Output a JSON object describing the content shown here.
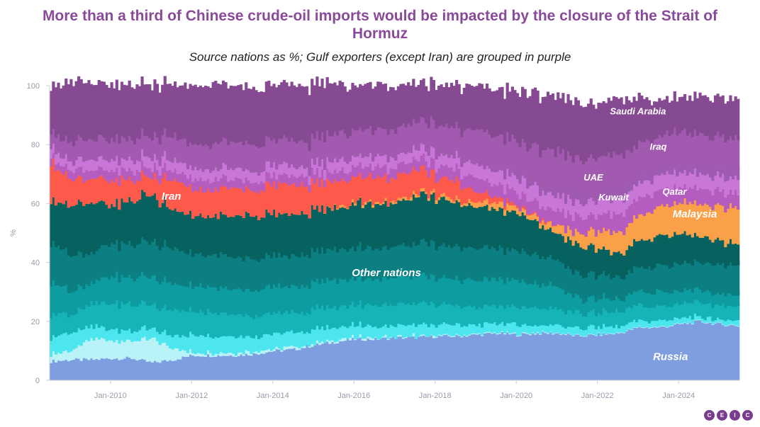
{
  "title": "More than a third of Chinese crude-oil imports would be impacted by the closure of the Strait of Hormuz",
  "subtitle": "Source nations as %; Gulf exporters (except Iran) are grouped in purple",
  "logo": [
    "C",
    "E",
    "I",
    "C"
  ],
  "chart_data": {
    "type": "area",
    "stacked": true,
    "ylabel": "%",
    "ylim": [
      0,
      100
    ],
    "yticks": [
      0,
      20,
      40,
      60,
      80,
      100
    ],
    "xlim": [
      2008.5,
      2025.5
    ],
    "xticks": [
      {
        "value": 2010,
        "label": "Jan-2010"
      },
      {
        "value": 2012,
        "label": "Jan-2012"
      },
      {
        "value": 2014,
        "label": "Jan-2014"
      },
      {
        "value": 2016,
        "label": "Jan-2016"
      },
      {
        "value": 2018,
        "label": "Jan-2018"
      },
      {
        "value": 2020,
        "label": "Jan-2020"
      },
      {
        "value": 2022,
        "label": "Jan-2022"
      },
      {
        "value": 2024,
        "label": "Jan-2024"
      }
    ],
    "x": [
      2008.5,
      2009,
      2009.5,
      2010,
      2010.5,
      2011,
      2011.5,
      2012,
      2012.5,
      2013,
      2013.5,
      2014,
      2014.5,
      2015,
      2015.5,
      2016,
      2016.5,
      2017,
      2017.5,
      2018,
      2018.5,
      2019,
      2019.5,
      2020,
      2020.5,
      2021,
      2021.5,
      2022,
      2022.5,
      2023,
      2023.5,
      2024,
      2024.5,
      2025,
      2025.5
    ],
    "series": [
      {
        "name": "Russia",
        "label": "Russia",
        "color": "#7f9ee0",
        "values": [
          6.5,
          7,
          7,
          7.5,
          7.5,
          6,
          7,
          8.5,
          8.5,
          8.5,
          9,
          10,
          10.5,
          12,
          13,
          14,
          14,
          14.5,
          14.5,
          15,
          15,
          15.5,
          16,
          15.5,
          16,
          16,
          15,
          15.5,
          16,
          18,
          18,
          19,
          20,
          19,
          18.5
        ]
      },
      {
        "name": "Other nations (light)",
        "color": "#baf3f7",
        "values": [
          2.5,
          3,
          7,
          6,
          6,
          8,
          4,
          1,
          0.8,
          1,
          0.8,
          0.8,
          0.7,
          0.5,
          0.5,
          0.5,
          0.5,
          0.5,
          0.5,
          0.3,
          0.3,
          0.3,
          0.3,
          0.3,
          0.3,
          0.2,
          0.2,
          0.2,
          0.2,
          0.2,
          0.2,
          0.2,
          0.2,
          0.2,
          0.2
        ]
      },
      {
        "name": "Other nations (cyan)",
        "color": "#4ee6ee",
        "values": [
          6,
          6,
          4,
          4,
          3.5,
          3.5,
          4,
          6,
          5.5,
          5.5,
          5,
          5,
          5,
          4.5,
          4.5,
          4,
          4,
          4,
          4,
          3.5,
          3.5,
          3,
          3,
          3,
          2.5,
          2.5,
          2.5,
          2.5,
          2,
          2,
          2,
          2,
          1.5,
          1.5,
          1.5
        ]
      },
      {
        "name": "Other nations (teal 1)",
        "color": "#16b4b6",
        "values": [
          8,
          6,
          8,
          9,
          9,
          8,
          9,
          8,
          8,
          7.5,
          7,
          7,
          6.5,
          7,
          7,
          7,
          7,
          7,
          7,
          7,
          6.5,
          6,
          6,
          6,
          6,
          5.5,
          5,
          5,
          5,
          5,
          5,
          5,
          5,
          5,
          5
        ]
      },
      {
        "name": "Other nations (teal 2)",
        "color": "#0d9ca0",
        "values": [
          11,
          8,
          7,
          9,
          9,
          9.5,
          9,
          8.5,
          8.5,
          8.5,
          9,
          9,
          9,
          9,
          9,
          9,
          9,
          9,
          9.5,
          9,
          9,
          9,
          9,
          9,
          8,
          7.5,
          5,
          5,
          4,
          4.5,
          5,
          4.5,
          4,
          4,
          4
        ]
      },
      {
        "name": "Other nations (teal 3)",
        "color": "#0c7f82",
        "values": [
          14,
          12,
          10,
          11,
          11,
          12,
          12,
          11,
          11,
          11,
          10.5,
          10.5,
          10.5,
          10.5,
          10.5,
          10.5,
          10.5,
          10.5,
          11,
          11,
          11,
          11,
          10.5,
          10,
          10,
          9,
          8,
          8,
          7.5,
          8,
          9,
          9,
          9,
          10,
          10
        ]
      },
      {
        "name": "Other nations (dark)",
        "color": "#07615f",
        "values": [
          14,
          17,
          17,
          13,
          15,
          16,
          13,
          13,
          13,
          14,
          15,
          14,
          14,
          14,
          14,
          15,
          15,
          15,
          16,
          16,
          15,
          14,
          13,
          13,
          11,
          9,
          10,
          9,
          8,
          9,
          10,
          10,
          9,
          8,
          7
        ]
      },
      {
        "name": "Malaysia",
        "label": "Malaysia",
        "color": "#f9a048",
        "values": [
          0,
          0,
          0,
          0,
          0,
          0,
          0,
          0,
          0,
          0,
          0,
          0,
          0,
          0,
          0.3,
          0.5,
          0.5,
          0.8,
          0.8,
          1,
          1,
          1.5,
          2,
          2,
          1.5,
          3,
          4,
          6,
          7,
          8.5,
          10,
          10.5,
          11,
          11.5,
          12.5
        ]
      },
      {
        "name": "Iran",
        "label": "Iran",
        "color": "#fd5a4c",
        "values": [
          13,
          9,
          8,
          8,
          7,
          6,
          10,
          9,
          8.5,
          10,
          8.5,
          10,
          10,
          9,
          8.5,
          8.5,
          8.5,
          8,
          8.5,
          6,
          6.5,
          3,
          2,
          0.5,
          0.5,
          0,
          0,
          0,
          0,
          0,
          0,
          0,
          0,
          0,
          0
        ]
      },
      {
        "name": "Kuwait",
        "label": "Kuwait",
        "color": "#b55cc0",
        "values": [
          2,
          3,
          3,
          3.5,
          3,
          3,
          3,
          3.5,
          3.5,
          3,
          3,
          3,
          3,
          3,
          3,
          3.5,
          3.5,
          3.5,
          3.5,
          4,
          4,
          4.5,
          4.5,
          4.5,
          4.5,
          5,
          5.5,
          5.5,
          6,
          6,
          5.5,
          5,
          5,
          5,
          5
        ]
      },
      {
        "name": "UAE",
        "label": "UAE",
        "color": "#c876d8",
        "values": [
          3,
          3,
          3.5,
          3.5,
          3.5,
          3.5,
          3.5,
          3.5,
          3.5,
          3.5,
          3.5,
          3.5,
          3.5,
          3.5,
          3.5,
          3.5,
          3.5,
          3.5,
          3.5,
          4,
          4,
          4.5,
          4.5,
          5,
          5,
          5,
          5,
          5,
          5,
          5,
          5,
          5,
          5,
          5,
          5
        ]
      },
      {
        "name": "Qatar",
        "label": "Qatar",
        "color": "#9c5cb2",
        "values": [
          0,
          0,
          0,
          0,
          0,
          0,
          0,
          0,
          0,
          0,
          0,
          0,
          0,
          0,
          0,
          0,
          0,
          0,
          0,
          0,
          0,
          0,
          0,
          1,
          1,
          1,
          1.5,
          1.5,
          2,
          2,
          2,
          2,
          2,
          2.5,
          2.5
        ]
      },
      {
        "name": "Iraq",
        "label": "Iraq",
        "color": "#a15ab0",
        "values": [
          5,
          7,
          7,
          7,
          7,
          7,
          8,
          8,
          8.5,
          9,
          9,
          8.5,
          8.5,
          9,
          9,
          9,
          9,
          9.5,
          9,
          10,
          10,
          12,
          12,
          11.5,
          13,
          14,
          13,
          13,
          13,
          11,
          11,
          12,
          11,
          11,
          11
        ]
      },
      {
        "name": "Saudi Arabia",
        "label": "Saudi Arabia",
        "color": "#864a92",
        "values": [
          15,
          21,
          19,
          18.5,
          18.5,
          17.5,
          17.5,
          19.5,
          20.5,
          18.5,
          19.5,
          18.5,
          19,
          18.5,
          17,
          15,
          15,
          14.5,
          12.7,
          13.2,
          14.2,
          15.1,
          15.4,
          16.9,
          18.4,
          18.8,
          19,
          18,
          19,
          15.5,
          12,
          11.5,
          13,
          13.5,
          13.5
        ]
      }
    ],
    "annotations": [
      {
        "text": "Saudi Arabia",
        "x": 2023.0,
        "y": 91.5
      },
      {
        "text": "Iraq",
        "x": 2023.5,
        "y": 79.5
      },
      {
        "text": "UAE",
        "x": 2021.9,
        "y": 69
      },
      {
        "text": "Kuwait",
        "x": 2022.4,
        "y": 62.3
      },
      {
        "text": "Qatar",
        "x": 2023.9,
        "y": 64.2
      },
      {
        "text": "Malaysia",
        "x": 2024.4,
        "y": 56.5
      },
      {
        "text": "Iran",
        "x": 2011.5,
        "y": 62.5
      },
      {
        "text": "Other nations",
        "x": 2016.8,
        "y": 36.5
      },
      {
        "text": "Russia",
        "x": 2023.8,
        "y": 8
      }
    ]
  }
}
